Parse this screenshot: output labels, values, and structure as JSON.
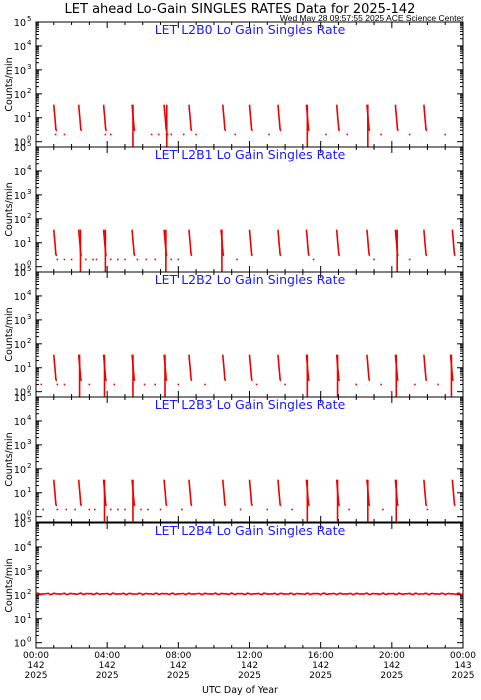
{
  "title": "LET ahead Lo-Gain SINGLES RATES Data for 2025-142",
  "timestamp": "Wed May 28 09:57:55 2025 ACE Science Center",
  "xlabel": "UTC Day of Year",
  "colors": {
    "data": "#ee0000",
    "panel_title": "#1a1aff",
    "axis": "#000000"
  },
  "chart_data": [
    {
      "type": "line",
      "title": "LET L2B0 Lo Gain Singles Rate",
      "ylabel": "Counts/min",
      "yscale": "log",
      "ylim": [
        0.6,
        100000
      ],
      "xlim": [
        0,
        24
      ],
      "pattern": "spikes",
      "spike_times": [
        1.0,
        2.4,
        3.8,
        5.4,
        7.2,
        8.6,
        10.5,
        12.0,
        13.6,
        15.2,
        16.9,
        18.6,
        20.2,
        21.8
      ],
      "spike_peak": 35,
      "tall_times": [
        5.45,
        7.35,
        15.25,
        18.65
      ],
      "tall_value": 35,
      "dots": [
        [
          1.1,
          2
        ],
        [
          1.6,
          2
        ],
        [
          3.9,
          2
        ],
        [
          4.2,
          2
        ],
        [
          6.5,
          2
        ],
        [
          6.9,
          2
        ],
        [
          7.4,
          2
        ],
        [
          7.6,
          2
        ],
        [
          8.3,
          2
        ],
        [
          9.0,
          2
        ],
        [
          11.2,
          2
        ],
        [
          13.1,
          2
        ],
        [
          16.3,
          2
        ],
        [
          17.5,
          2
        ],
        [
          19.4,
          2
        ],
        [
          21.0,
          2
        ],
        [
          23.0,
          2
        ]
      ]
    },
    {
      "type": "line",
      "title": "LET L2B1 Lo Gain Singles Rate",
      "ylabel": "Counts/min",
      "yscale": "log",
      "ylim": [
        0.6,
        100000
      ],
      "xlim": [
        0,
        24
      ],
      "pattern": "spikes",
      "spike_times": [
        1.0,
        2.4,
        3.8,
        5.4,
        7.2,
        8.6,
        10.4,
        12.0,
        13.6,
        15.2,
        16.9,
        18.6,
        20.2,
        21.8,
        23.4
      ],
      "spike_peak": 35,
      "tall_times": [
        2.5,
        3.9,
        7.3,
        10.45,
        20.3
      ],
      "tall_value": 35,
      "dots": [
        [
          1.2,
          2
        ],
        [
          1.6,
          2
        ],
        [
          2.0,
          2
        ],
        [
          2.8,
          2
        ],
        [
          3.2,
          2
        ],
        [
          3.4,
          2
        ],
        [
          4.2,
          2
        ],
        [
          4.6,
          2
        ],
        [
          5.0,
          2
        ],
        [
          5.7,
          2
        ],
        [
          6.2,
          2
        ],
        [
          6.7,
          2
        ],
        [
          7.6,
          2
        ],
        [
          8.0,
          2
        ],
        [
          11.3,
          2
        ],
        [
          15.6,
          2
        ],
        [
          19.0,
          2
        ],
        [
          21.0,
          2
        ]
      ]
    },
    {
      "type": "line",
      "title": "LET L2B2 Lo Gain Singles Rate",
      "ylabel": "Counts/min",
      "yscale": "log",
      "ylim": [
        0.6,
        100000
      ],
      "xlim": [
        0,
        24
      ],
      "pattern": "spikes",
      "spike_times": [
        1.0,
        2.4,
        3.8,
        5.4,
        7.2,
        8.6,
        10.5,
        12.0,
        13.6,
        15.2,
        16.9,
        18.6,
        20.2,
        21.8,
        23.3
      ],
      "spike_peak": 35,
      "tall_times": [
        2.45,
        3.85,
        5.45,
        7.25,
        15.25,
        16.95,
        20.25,
        23.35
      ],
      "tall_value": 35,
      "dots": [
        [
          0.3,
          2
        ],
        [
          1.2,
          2
        ],
        [
          1.6,
          2
        ],
        [
          3.0,
          2
        ],
        [
          4.4,
          2
        ],
        [
          6.1,
          2
        ],
        [
          6.7,
          2
        ],
        [
          8.0,
          2
        ],
        [
          9.5,
          2
        ],
        [
          12.4,
          2
        ],
        [
          14.0,
          2
        ],
        [
          18.0,
          2
        ],
        [
          19.4,
          2
        ],
        [
          21.3,
          2
        ],
        [
          22.6,
          2
        ]
      ]
    },
    {
      "type": "line",
      "title": "LET L2B3 Lo Gain Singles Rate",
      "ylabel": "Counts/min",
      "yscale": "log",
      "ylim": [
        0.6,
        100000
      ],
      "xlim": [
        0,
        24
      ],
      "pattern": "spikes",
      "spike_times": [
        1.0,
        2.4,
        3.8,
        5.4,
        7.2,
        8.6,
        10.5,
        12.0,
        13.6,
        15.2,
        16.9,
        18.6,
        20.2,
        21.8,
        23.4
      ],
      "spike_peak": 35,
      "tall_times": [
        3.85,
        5.45,
        15.25,
        16.95,
        18.65,
        20.25
      ],
      "tall_value": 35,
      "dots": [
        [
          0.4,
          2
        ],
        [
          1.2,
          2
        ],
        [
          1.7,
          2
        ],
        [
          2.2,
          2
        ],
        [
          3.0,
          2
        ],
        [
          3.3,
          2
        ],
        [
          4.2,
          2
        ],
        [
          4.6,
          2
        ],
        [
          5.0,
          2
        ],
        [
          5.9,
          2
        ],
        [
          6.3,
          2
        ],
        [
          7.0,
          2
        ],
        [
          8.2,
          2
        ],
        [
          11.5,
          2
        ],
        [
          13.0,
          2
        ],
        [
          14.4,
          2
        ],
        [
          17.6,
          2
        ],
        [
          19.5,
          2
        ],
        [
          22.0,
          2
        ]
      ]
    },
    {
      "type": "line",
      "title": "LET L2B4 Lo Gain Singles Rate",
      "ylabel": "Counts/min",
      "yscale": "log",
      "ylim": [
        0.6,
        100000
      ],
      "xlim": [
        0,
        24
      ],
      "pattern": "flat",
      "flat_value": 110,
      "dots": []
    }
  ],
  "x_ticks": [
    {
      "time": "00:00",
      "doy": "142",
      "year": "2025"
    },
    {
      "time": "04:00",
      "doy": "142",
      "year": "2025"
    },
    {
      "time": "08:00",
      "doy": "142",
      "year": "2025"
    },
    {
      "time": "12:00",
      "doy": "142",
      "year": "2025"
    },
    {
      "time": "16:00",
      "doy": "142",
      "year": "2025"
    },
    {
      "time": "20:00",
      "doy": "142",
      "year": "2025"
    },
    {
      "time": "00:00",
      "doy": "143",
      "year": "2025"
    }
  ],
  "y_tick_base": "10",
  "y_tick_exps": [
    "0",
    "1",
    "2",
    "3",
    "4",
    "5"
  ]
}
